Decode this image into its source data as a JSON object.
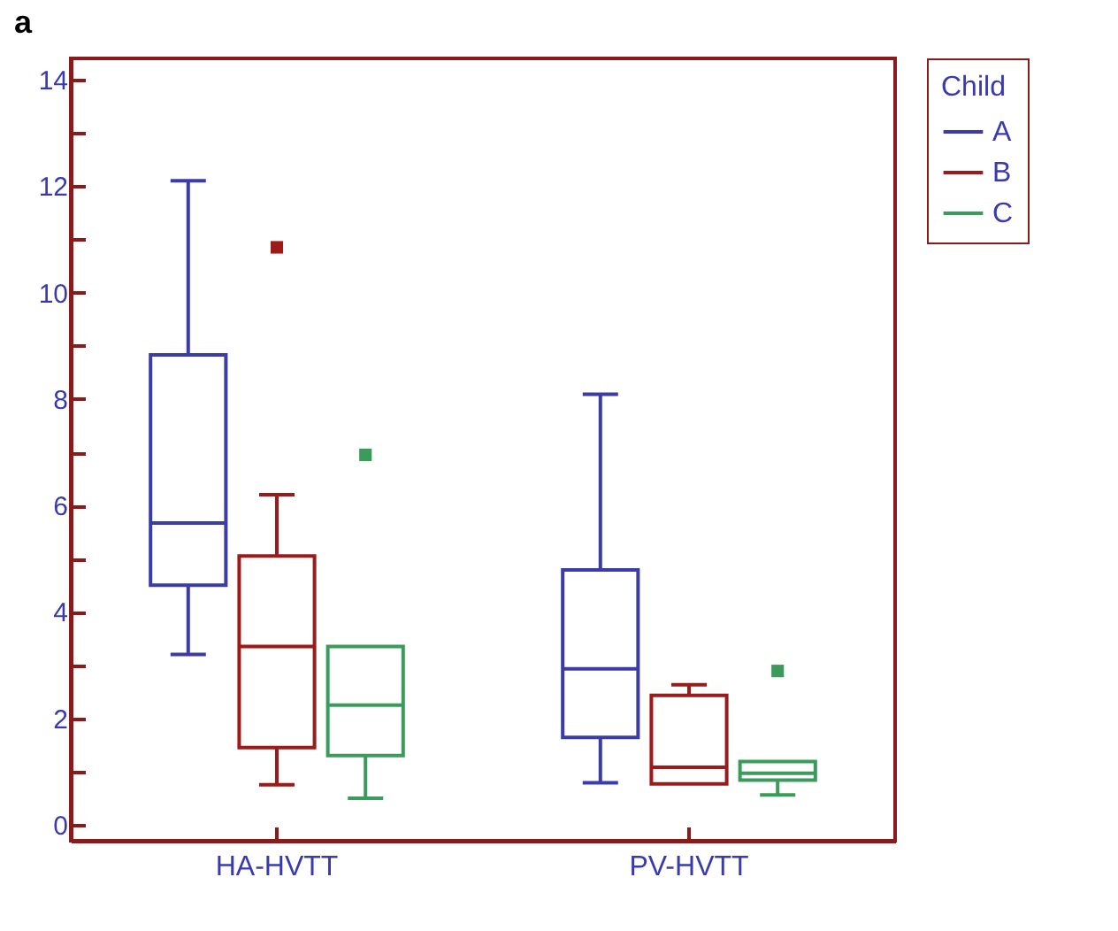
{
  "chart_data": {
    "type": "box",
    "title": "a",
    "legend_title": "Child",
    "legend": "right",
    "grid": false,
    "categories": [
      "HA-HVTT",
      "PV-HVTT"
    ],
    "ylim": [
      -0.3,
      14.4
    ],
    "yticks": [
      0,
      {
        "value": 1,
        "label": null
      },
      2,
      {
        "value": 3,
        "label": null
      },
      4,
      {
        "value": 5,
        "label": null
      },
      6,
      {
        "value": 7,
        "label": null
      },
      8,
      {
        "value": 9,
        "label": null
      },
      10,
      {
        "value": 11,
        "label": null
      },
      12,
      {
        "value": 13,
        "label": null
      },
      14
    ],
    "series": [
      {
        "name": "A",
        "color": "#3c3ca8",
        "boxes": [
          {
            "low": 3.2,
            "q1": 4.5,
            "median": 5.67,
            "q3": 8.83,
            "high": 12.1
          },
          {
            "low": 0.79,
            "q1": 1.64,
            "median": 2.93,
            "q3": 4.79,
            "high": 8.09
          }
        ]
      },
      {
        "name": "B",
        "color": "#9b1b1b",
        "boxes": [
          {
            "low": 0.75,
            "q1": 1.45,
            "median": 3.35,
            "q3": 5.05,
            "high": 6.2,
            "outliers": [
              10.85
            ]
          },
          {
            "low": 0.77,
            "q1": 0.77,
            "median": 1.08,
            "q3": 2.43,
            "high": 2.63
          }
        ]
      },
      {
        "name": "C",
        "color": "#3a9b5a",
        "boxes": [
          {
            "low": 0.5,
            "q1": 1.3,
            "median": 2.25,
            "q3": 3.35,
            "high": 3.35,
            "outliers": [
              6.95
            ]
          },
          {
            "low": 0.56,
            "q1": 0.84,
            "median": 0.97,
            "q3": 1.19,
            "high": 1.19,
            "outliers": [
              2.89
            ]
          }
        ]
      }
    ]
  }
}
